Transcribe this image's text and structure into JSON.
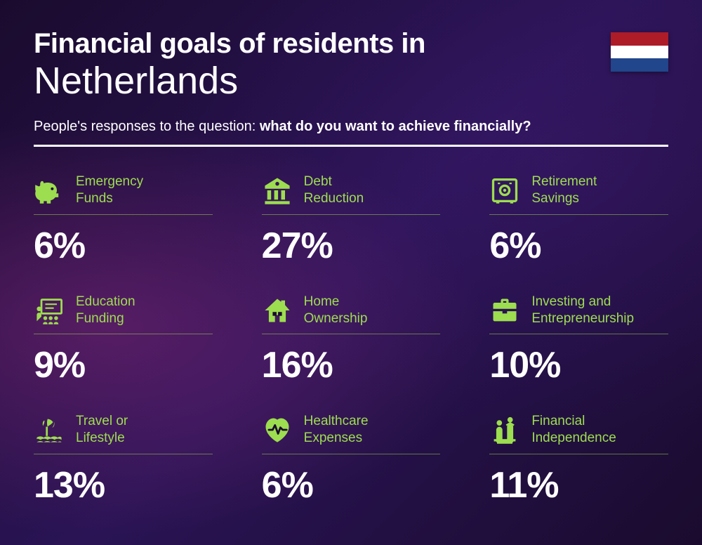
{
  "title_line1": "Financial goals of residents in",
  "title_line2": "Netherlands",
  "subtitle_prefix": "People's responses to the question: ",
  "subtitle_bold": "what do you want to achieve financially?",
  "flag_colors": {
    "top": "#AE1C28",
    "middle": "#FFFFFF",
    "bottom": "#21468B"
  },
  "accent_color": "#9ddd50",
  "text_color": "#ffffff",
  "background_gradient": [
    "#1a0b2e",
    "#2a1455",
    "#1a0b2e"
  ],
  "label_fontsize": 19,
  "value_fontsize": 52,
  "title1_fontsize": 40,
  "title2_fontsize": 54,
  "subtitle_fontsize": 20,
  "grid": {
    "cols": 3,
    "rows": 3,
    "col_gap": 70,
    "row_gap": 38
  },
  "items": [
    {
      "icon": "piggy-bank-icon",
      "label_l1": "Emergency",
      "label_l2": "Funds",
      "value": "6%"
    },
    {
      "icon": "bank-icon",
      "label_l1": "Debt",
      "label_l2": "Reduction",
      "value": "27%"
    },
    {
      "icon": "safe-icon",
      "label_l1": "Retirement",
      "label_l2": "Savings",
      "value": "6%"
    },
    {
      "icon": "education-icon",
      "label_l1": "Education",
      "label_l2": "Funding",
      "value": "9%"
    },
    {
      "icon": "house-icon",
      "label_l1": "Home",
      "label_l2": "Ownership",
      "value": "16%"
    },
    {
      "icon": "briefcase-icon",
      "label_l1": "Investing and",
      "label_l2": "Entrepreneurship",
      "value": "10%"
    },
    {
      "icon": "travel-icon",
      "label_l1": "Travel or",
      "label_l2": "Lifestyle",
      "value": "13%"
    },
    {
      "icon": "healthcare-icon",
      "label_l1": "Healthcare",
      "label_l2": "Expenses",
      "value": "6%"
    },
    {
      "icon": "independence-icon",
      "label_l1": "Financial",
      "label_l2": "Independence",
      "value": "11%"
    }
  ]
}
